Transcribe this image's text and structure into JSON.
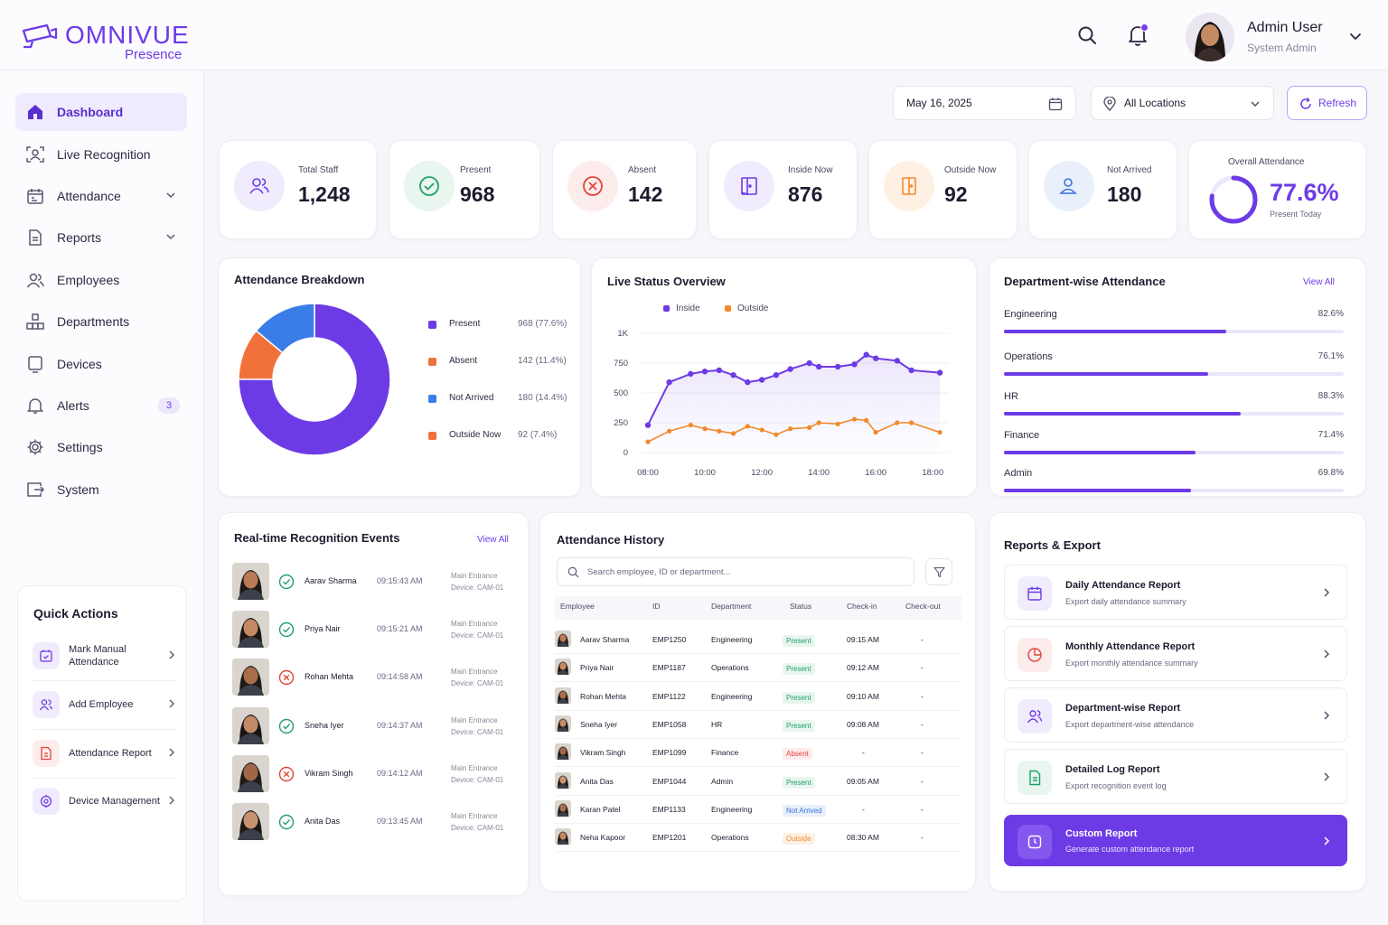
{
  "brand": {
    "name": "OMNIVUE",
    "sub": "Presence",
    "accent": "#6d3be6"
  },
  "header": {
    "user_name": "Admin User",
    "user_role": "System Admin"
  },
  "sidebar": {
    "items": [
      {
        "label": "Dashboard",
        "icon": "home-icon"
      },
      {
        "label": "Live Recognition",
        "icon": "face-scan-icon"
      },
      {
        "label": "Attendance",
        "icon": "calendar-icon"
      },
      {
        "label": "Reports",
        "icon": "document-icon"
      },
      {
        "label": "Employees",
        "icon": "users-icon"
      },
      {
        "label": "Departments",
        "icon": "building-icon"
      },
      {
        "label": "Devices",
        "icon": "device-icon"
      },
      {
        "label": "Alerts",
        "icon": "bell-icon",
        "badge": "3"
      },
      {
        "label": "Settings",
        "icon": "gear-icon"
      },
      {
        "label": "System",
        "icon": "system-icon"
      }
    ]
  },
  "quick_actions": {
    "title": "Quick Actions",
    "items": [
      {
        "label": "Mark Manual Attendance"
      },
      {
        "label": "Add Employee"
      },
      {
        "label": "Attendance Report"
      },
      {
        "label": "Device Management"
      }
    ]
  },
  "controls": {
    "date": "May 16, 2025",
    "location": "All Locations",
    "refresh": "Refresh"
  },
  "stats": [
    {
      "label": "Total Staff",
      "value": "1,248",
      "color": "#6d3be6"
    },
    {
      "label": "Present",
      "value": "968",
      "color": "#22a06b"
    },
    {
      "label": "Absent",
      "value": "142",
      "color": "#e0443a"
    },
    {
      "label": "Inside Now",
      "value": "876",
      "color": "#6d3be6"
    },
    {
      "label": "Outside Now",
      "value": "92",
      "color": "#f08a2c"
    },
    {
      "label": "Not Arrived",
      "value": "180",
      "color": "#3b6fd8"
    }
  ],
  "overall": {
    "title": "Overall Attendance",
    "value": "77.6%",
    "fraction": 0.776,
    "sub": "Present Today"
  },
  "breakdown": {
    "title": "Attendance Breakdown",
    "items": [
      {
        "label": "Present",
        "value": "968 (77.6%)",
        "color": "#6d3be6"
      },
      {
        "label": "Absent",
        "value": "142 (11.4%)",
        "color": "#f0713a"
      },
      {
        "label": "Not Arrived",
        "value": "180 (14.4%)",
        "color": "#3b7de8"
      },
      {
        "label": "Outside Now",
        "value": "92 (7.4%)",
        "color": "#f0713a"
      }
    ]
  },
  "live": {
    "title": "Live Status Overview",
    "legend_inside": "Inside",
    "legend_outside": "Outside",
    "y_ticks": [
      "0",
      "250",
      "500",
      "750",
      "1K"
    ],
    "x_ticks": [
      "08:00",
      "10:00",
      "12:00",
      "14:00",
      "16:00",
      "18:00"
    ]
  },
  "chart_data": {
    "type": "line",
    "x": [
      "08:00",
      "08:45",
      "09:30",
      "10:00",
      "10:30",
      "11:00",
      "11:30",
      "12:00",
      "12:30",
      "13:00",
      "13:40",
      "14:00",
      "14:40",
      "15:15",
      "15:40",
      "16:00",
      "16:45",
      "17:15",
      "18:15"
    ],
    "series": [
      {
        "name": "Inside",
        "color": "#6d3be6",
        "values": [
          230,
          590,
          660,
          680,
          690,
          650,
          590,
          610,
          650,
          700,
          750,
          720,
          720,
          740,
          820,
          790,
          770,
          690,
          670
        ]
      },
      {
        "name": "Outside",
        "color": "#f08a2c",
        "values": [
          90,
          180,
          230,
          200,
          180,
          160,
          220,
          190,
          150,
          200,
          210,
          250,
          240,
          280,
          270,
          170,
          250,
          250,
          170
        ]
      }
    ],
    "ylim": [
      0,
      1000
    ]
  },
  "departments": {
    "title": "Department-wise Attendance",
    "view_all": "View All",
    "items": [
      {
        "name": "Engineering",
        "pct": "82.6%",
        "value": 0.826
      },
      {
        "name": "Operations",
        "pct": "76.1%",
        "value": 0.761
      },
      {
        "name": "HR",
        "pct": "88.3%",
        "value": 0.883
      },
      {
        "name": "Finance",
        "pct": "71.4%",
        "value": 0.714
      },
      {
        "name": "Admin",
        "pct": "69.8%",
        "value": 0.698
      }
    ]
  },
  "events": {
    "title": "Real-time Recognition Events",
    "view_all": "View All",
    "items": [
      {
        "name": "Aarav Sharma",
        "time": "09:15:43 AM",
        "loc": "Main Entrance",
        "device": "Device: CAM-01",
        "ok": true
      },
      {
        "name": "Priya Nair",
        "time": "09:15:21 AM",
        "loc": "Main Entrance",
        "device": "Device: CAM-01",
        "ok": true
      },
      {
        "name": "Rohan Mehta",
        "time": "09:14:58 AM",
        "loc": "Main Entrance",
        "device": "Device: CAM-01",
        "ok": false
      },
      {
        "name": "Sneha Iyer",
        "time": "09:14:37 AM",
        "loc": "Main Entrance",
        "device": "Device: CAM-01",
        "ok": true
      },
      {
        "name": "Vikram Singh",
        "time": "09:14:12 AM",
        "loc": "Main Entrance",
        "device": "Device: CAM-01",
        "ok": false
      },
      {
        "name": "Anita Das",
        "time": "09:13:45 AM",
        "loc": "Main Entrance",
        "device": "Device: CAM-01",
        "ok": true
      }
    ]
  },
  "history": {
    "title": "Attendance History",
    "search_placeholder": "Search employee, ID or department...",
    "columns": [
      "Employee",
      "ID",
      "Department",
      "Status",
      "Check-in",
      "Check-out"
    ],
    "rows": [
      {
        "name": "Aarav Sharma",
        "id": "EMP1250",
        "dept": "Engineering",
        "status": "Present",
        "in": "09:15 AM",
        "out": "-"
      },
      {
        "name": "Priya Nair",
        "id": "EMP1187",
        "dept": "Operations",
        "status": "Present",
        "in": "09:12 AM",
        "out": "-"
      },
      {
        "name": "Rohan Mehta",
        "id": "EMP1122",
        "dept": "Engineering",
        "status": "Present",
        "in": "09:10 AM",
        "out": "-"
      },
      {
        "name": "Sneha Iyer",
        "id": "EMP1058",
        "dept": "HR",
        "status": "Present",
        "in": "09:08 AM",
        "out": "-"
      },
      {
        "name": "Vikram Singh",
        "id": "EMP1099",
        "dept": "Finance",
        "status": "Absent",
        "in": "-",
        "out": "-"
      },
      {
        "name": "Anita Das",
        "id": "EMP1044",
        "dept": "Admin",
        "status": "Present",
        "in": "09:05 AM",
        "out": "-"
      },
      {
        "name": "Karan Patel",
        "id": "EMP1133",
        "dept": "Engineering",
        "status": "Not Arrived",
        "in": "-",
        "out": "-"
      },
      {
        "name": "Neha Kapoor",
        "id": "EMP1201",
        "dept": "Operations",
        "status": "Outside",
        "in": "08:30 AM",
        "out": "-"
      }
    ]
  },
  "reports": {
    "title": "Reports & Export",
    "items": [
      {
        "title": "Daily Attendance Report",
        "sub": "Export daily attendance summary"
      },
      {
        "title": "Monthly Attendance Report",
        "sub": "Export monthly attendance summary"
      },
      {
        "title": "Department-wise Report",
        "sub": "Export department-wise attendance"
      },
      {
        "title": "Detailed Log Report",
        "sub": "Export recognition event log"
      },
      {
        "title": "Custom Report",
        "sub": "Generate custom attendance report"
      }
    ]
  }
}
